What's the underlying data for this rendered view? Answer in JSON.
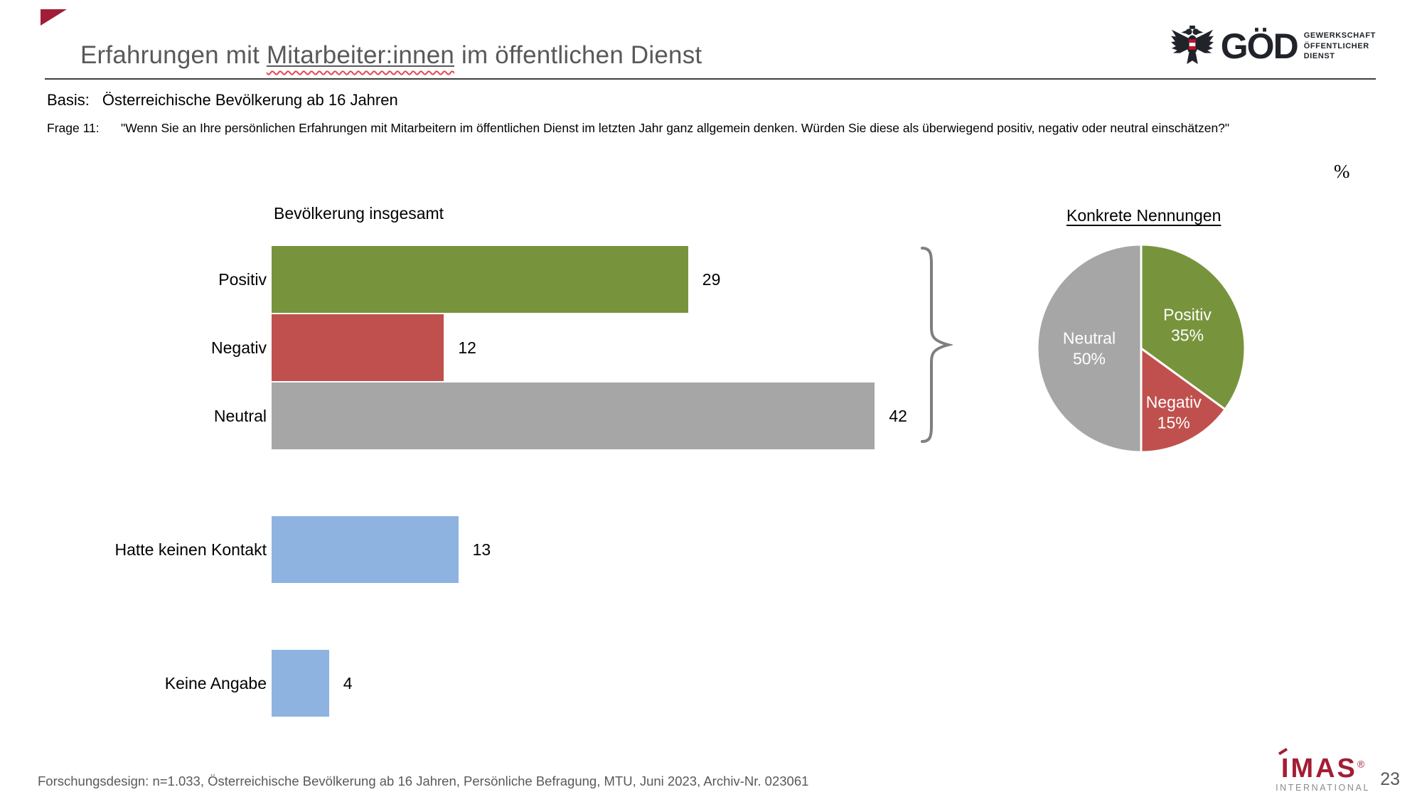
{
  "header": {
    "title_part1": "Erfahrungen mit ",
    "title_misspelled": "Mitarbeiter:innen",
    "title_part2": " im öffentlichen Dienst",
    "flag_color": "#A01E37",
    "goed_logo": {
      "name": "GÖD",
      "tagline_line1": "GEWERKSCHAFT",
      "tagline_line2": "ÖFFENTLICHER",
      "tagline_line3": "DIENST"
    }
  },
  "meta": {
    "basis_label": "Basis:",
    "basis_text": "Österreichische Bevölkerung ab 16 Jahren",
    "frage_label": "Frage 11:",
    "frage_text": "\"Wenn Sie an Ihre persönlichen Erfahrungen mit Mitarbeitern im öffentlichen Dienst im letzten Jahr ganz allgemein denken. Würden Sie diese als überwiegend positiv, negativ oder neutral einschätzen?\"",
    "unit_label": "%"
  },
  "chart_data": [
    {
      "type": "bar",
      "orientation": "horizontal",
      "title": "Bevölkerung insgesamt",
      "unit": "%",
      "xlim": [
        0,
        44
      ],
      "groups": [
        {
          "name": "ratings",
          "bars": [
            {
              "label": "Positiv",
              "value": 29,
              "color": "#77943C"
            },
            {
              "label": "Negativ",
              "value": 12,
              "color": "#C0504D"
            },
            {
              "label": "Neutral",
              "value": 42,
              "color": "#A6A6A6"
            }
          ]
        },
        {
          "name": "no-contact",
          "bars": [
            {
              "label": "Hatte keinen Kontakt",
              "value": 13,
              "color": "#8EB3E1"
            },
            {
              "label": "Keine Angabe",
              "value": 4,
              "color": "#8EB3E1"
            }
          ]
        }
      ]
    },
    {
      "type": "pie",
      "title": "Konkrete Nennungen",
      "start_angle_deg": 0,
      "direction": "clockwise",
      "slices": [
        {
          "label": "Positiv",
          "pct": 35,
          "color": "#77943C"
        },
        {
          "label": "Negativ",
          "pct": 15,
          "color": "#C0504D"
        },
        {
          "label": "Neutral",
          "pct": 50,
          "color": "#A6A6A6"
        }
      ]
    }
  ],
  "footer": {
    "source": "Forschungsdesign: n=1.033, Österreichische Bevölkerung ab 16 Jahren, Persönliche Befragung, MTU, Juni 2023, Archiv-Nr. 023061",
    "page_number": "23",
    "imas_logo": {
      "name": "IMAS",
      "reg": "®",
      "sub": "INTERNATIONAL"
    }
  }
}
